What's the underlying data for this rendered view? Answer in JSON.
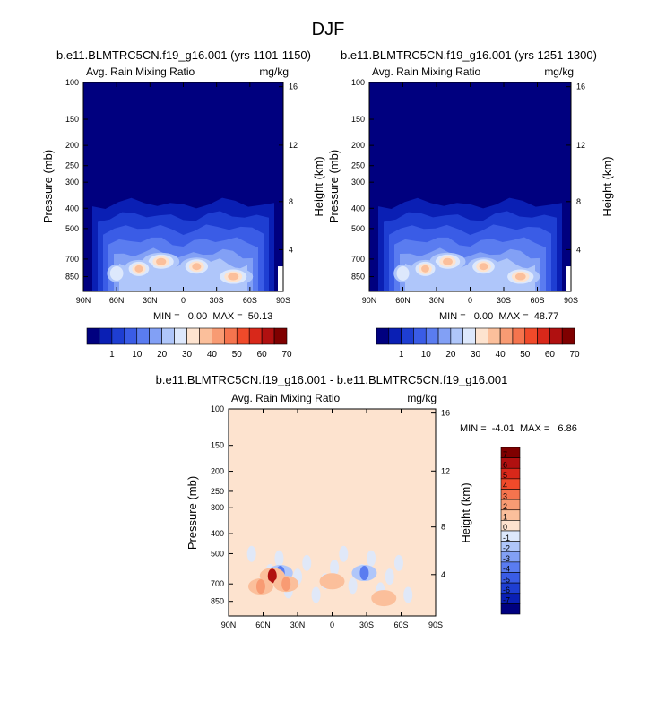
{
  "figure": {
    "title": "DJF"
  },
  "colors": {
    "diverging_scale": [
      "#00007f",
      "#0a1fb4",
      "#1e3ed2",
      "#3a5ce6",
      "#5a7cf0",
      "#82a0f5",
      "#afc6fa",
      "#dde8fc",
      "#fde3cf",
      "#fbbf9b",
      "#f89b73",
      "#f5744e",
      "#f04a2a",
      "#d8281a",
      "#b01010",
      "#7f0000"
    ],
    "diff_scale": [
      "#00007f",
      "#0a1fb4",
      "#1e3ed2",
      "#3a5ce6",
      "#5a7cf0",
      "#82a0f5",
      "#afc6fa",
      "#dde8fc",
      "#fde3cf",
      "#fbbf9b",
      "#f89b73",
      "#f5744e",
      "#f04a2a",
      "#d8281a",
      "#b01010",
      "#7f0000"
    ]
  },
  "chart_data": [
    {
      "type": "heatmap",
      "id": "panel_a",
      "title": "b.e11.BLMTRC5CN.f19_g16.001 (yrs 1101-1150)",
      "left_label": "Avg. Rain Mixing Ratio",
      "right_label": "mg/kg",
      "xlabel": "",
      "ylabel": "Pressure (mb)",
      "ylabel_right": "Height (km)",
      "x_ticks": [
        "90N",
        "60N",
        "30N",
        "0",
        "30S",
        "60S",
        "90S"
      ],
      "y_ticks": [
        "100",
        "150",
        "200",
        "250",
        "300",
        "400",
        "500",
        "700",
        "850"
      ],
      "y_ticks_right": [
        "16",
        "12",
        "8",
        "4"
      ],
      "stats": "MIN =   0.00  MAX =  50.13",
      "colorbar_labels": [
        "1",
        "10",
        "20",
        "30",
        "40",
        "50",
        "60",
        "70"
      ],
      "blobs": [
        {
          "lat": -45,
          "p": 850,
          "v": 45
        },
        {
          "lat": -12,
          "p": 760,
          "v": 38
        },
        {
          "lat": 20,
          "p": 720,
          "v": 42
        },
        {
          "lat": 40,
          "p": 780,
          "v": 34
        },
        {
          "lat": 60,
          "p": 820,
          "v": 22
        }
      ]
    },
    {
      "type": "heatmap",
      "id": "panel_b",
      "title": "b.e11.BLMTRC5CN.f19_g16.001 (yrs 1251-1300)",
      "left_label": "Avg. Rain Mixing Ratio",
      "right_label": "mg/kg",
      "xlabel": "",
      "ylabel": "Pressure (mb)",
      "ylabel_right": "Height (km)",
      "x_ticks": [
        "90N",
        "60N",
        "30N",
        "0",
        "30S",
        "60S",
        "90S"
      ],
      "y_ticks": [
        "100",
        "150",
        "200",
        "250",
        "300",
        "400",
        "500",
        "700",
        "850"
      ],
      "y_ticks_right": [
        "16",
        "12",
        "8",
        "4"
      ],
      "stats": "MIN =   0.00  MAX =  48.77",
      "colorbar_labels": [
        "1",
        "10",
        "20",
        "30",
        "40",
        "50",
        "60",
        "70"
      ],
      "blobs": [
        {
          "lat": -45,
          "p": 850,
          "v": 44
        },
        {
          "lat": -12,
          "p": 760,
          "v": 37
        },
        {
          "lat": 20,
          "p": 720,
          "v": 41
        },
        {
          "lat": 40,
          "p": 780,
          "v": 33
        },
        {
          "lat": 60,
          "p": 820,
          "v": 21
        }
      ]
    },
    {
      "type": "heatmap",
      "id": "panel_diff",
      "title": "b.e11.BLMTRC5CN.f19_g16.001 - b.e11.BLMTRC5CN.f19_g16.001",
      "left_label": "Avg. Rain Mixing Ratio",
      "right_label": "mg/kg",
      "xlabel": "",
      "ylabel": "Pressure (mb)",
      "ylabel_right": "Height (km)",
      "x_ticks": [
        "90N",
        "60N",
        "30N",
        "0",
        "30S",
        "60S",
        "90S"
      ],
      "y_ticks": [
        "100",
        "150",
        "200",
        "250",
        "300",
        "400",
        "500",
        "700",
        "850"
      ],
      "y_ticks_right": [
        "16",
        "12",
        "8",
        "4"
      ],
      "stats": "MIN =  -4.01  MAX =   6.86",
      "colorbar_labels": [
        "7",
        "6",
        "5",
        "4",
        "3",
        "2",
        "1",
        "0",
        "-1",
        "-2",
        "-3",
        "-4",
        "-5",
        "-6",
        "-7"
      ],
      "features": [
        {
          "lat": -28,
          "p": 620,
          "v": -3
        },
        {
          "lat": 45,
          "p": 620,
          "v": -3
        },
        {
          "lat": 52,
          "p": 640,
          "v": 6
        },
        {
          "lat": 40,
          "p": 700,
          "v": 2
        },
        {
          "lat": 0,
          "p": 680,
          "v": 1
        },
        {
          "lat": 62,
          "p": 720,
          "v": 2
        },
        {
          "lat": -45,
          "p": 820,
          "v": 1
        }
      ]
    }
  ]
}
